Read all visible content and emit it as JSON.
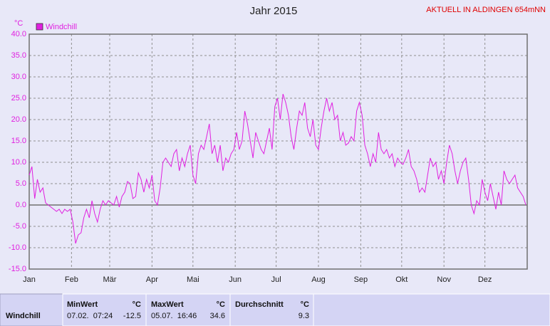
{
  "chart_data": {
    "type": "line",
    "title": "Jahr 2015",
    "subtitle": "AKTUELL IN ALDINGEN 654mNN",
    "y_unit": "°C",
    "xlim": [
      1,
      366
    ],
    "xticks": [
      {
        "value": 1,
        "label": "Jan"
      },
      {
        "value": 32,
        "label": "Feb"
      },
      {
        "value": 60,
        "label": "Mär"
      },
      {
        "value": 91,
        "label": "Apr"
      },
      {
        "value": 121,
        "label": "Mai"
      },
      {
        "value": 152,
        "label": "Jun"
      },
      {
        "value": 182,
        "label": "Jul"
      },
      {
        "value": 213,
        "label": "Aug"
      },
      {
        "value": 244,
        "label": "Sep"
      },
      {
        "value": 274,
        "label": "Okt"
      },
      {
        "value": 305,
        "label": "Nov"
      },
      {
        "value": 335,
        "label": "Dez"
      }
    ],
    "ylim": [
      -15,
      40
    ],
    "yticks": [
      {
        "value": -15,
        "label": "-15.0"
      },
      {
        "value": -10,
        "label": "-10.0"
      },
      {
        "value": -5,
        "label": "-5.0"
      },
      {
        "value": 0,
        "label": "0.0"
      },
      {
        "value": 5,
        "label": "5.0"
      },
      {
        "value": 10,
        "label": "10.0"
      },
      {
        "value": 15,
        "label": "15.0"
      },
      {
        "value": 20,
        "label": "20.0"
      },
      {
        "value": 25,
        "label": "25.0"
      },
      {
        "value": 30,
        "label": "30.0"
      },
      {
        "value": 35,
        "label": "35.0"
      },
      {
        "value": 40,
        "label": "40.0"
      }
    ],
    "grid": true,
    "x": [
      1,
      3,
      5,
      7,
      9,
      11,
      13,
      15,
      17,
      19,
      21,
      23,
      25,
      27,
      29,
      31,
      33,
      35,
      37,
      39,
      41,
      43,
      45,
      47,
      49,
      51,
      53,
      55,
      57,
      59,
      61,
      63,
      65,
      67,
      69,
      71,
      73,
      75,
      77,
      79,
      81,
      83,
      85,
      87,
      89,
      91,
      93,
      95,
      97,
      99,
      101,
      103,
      105,
      107,
      109,
      111,
      113,
      115,
      117,
      119,
      121,
      123,
      125,
      127,
      129,
      131,
      133,
      135,
      137,
      139,
      141,
      143,
      145,
      147,
      149,
      151,
      153,
      155,
      157,
      159,
      161,
      163,
      165,
      167,
      169,
      171,
      173,
      175,
      177,
      179,
      181,
      183,
      185,
      187,
      189,
      191,
      193,
      195,
      197,
      199,
      201,
      203,
      205,
      207,
      209,
      211,
      213,
      215,
      217,
      219,
      221,
      223,
      225,
      227,
      229,
      231,
      233,
      235,
      237,
      239,
      241,
      243,
      245,
      247,
      249,
      251,
      253,
      255,
      257,
      259,
      261,
      263,
      265,
      267,
      269,
      271,
      273,
      275,
      277,
      279,
      281,
      283,
      285,
      287,
      289,
      291,
      293,
      295,
      297,
      299,
      301,
      303,
      305,
      307,
      309,
      311,
      313,
      315,
      317,
      319,
      321,
      323,
      325,
      327,
      329,
      331,
      333,
      335,
      337,
      339,
      341,
      343,
      345,
      347,
      349,
      351,
      353,
      355,
      357,
      359,
      361,
      363,
      365
    ],
    "series": [
      {
        "name": "Windchill",
        "color": "#e020e0",
        "values": [
          7,
          9,
          1.5,
          6,
          3,
          4,
          0.5,
          0,
          -0.5,
          -1,
          -1.5,
          -1,
          -2,
          -1,
          -1.5,
          -1,
          -4,
          -9,
          -7,
          -6.5,
          -3,
          -1,
          -3,
          1,
          -2,
          -4,
          -1,
          1,
          0,
          1,
          0.5,
          0,
          2,
          -0.5,
          2,
          3,
          5.5,
          5,
          1.5,
          2,
          7.5,
          6,
          3,
          6,
          4,
          7,
          1,
          0,
          4,
          10,
          11,
          10,
          9,
          12,
          13,
          8,
          11,
          9,
          12,
          14,
          7,
          5,
          12,
          14,
          13,
          16,
          19,
          12,
          14,
          10,
          14,
          8,
          11,
          10,
          12,
          13,
          17,
          13,
          15,
          22,
          19,
          15,
          11,
          17,
          15,
          13,
          12,
          15,
          18,
          13,
          23,
          25,
          20,
          26,
          24,
          21,
          16,
          13,
          18,
          22,
          21,
          24,
          18,
          16,
          20,
          14,
          13,
          18,
          22,
          25,
          22,
          24,
          20,
          21,
          15,
          17,
          14,
          14.5,
          16,
          15,
          22,
          24,
          21,
          14,
          12,
          9,
          12,
          10,
          17,
          13,
          12,
          13,
          11,
          12,
          9,
          11,
          10,
          9.5,
          11,
          13,
          9,
          8,
          6,
          3,
          4,
          3,
          7,
          11,
          9,
          10,
          6,
          8,
          5,
          10,
          14,
          12,
          8,
          5,
          8,
          10,
          11,
          6,
          0,
          -2,
          1,
          0,
          6,
          3,
          1,
          5,
          2,
          -1,
          3,
          0,
          8,
          6,
          5,
          6,
          7,
          4,
          3,
          2,
          0
        ]
      }
    ]
  },
  "table": {
    "headers": [
      "MinWert",
      "°C",
      "MaxWert",
      "°C",
      "Durchschnitt",
      "°C"
    ],
    "rows": [
      [
        "Windchill",
        "07.02.  07:24",
        "-12.5",
        "05.07.  16:46",
        "34.6",
        "9.3"
      ]
    ]
  }
}
